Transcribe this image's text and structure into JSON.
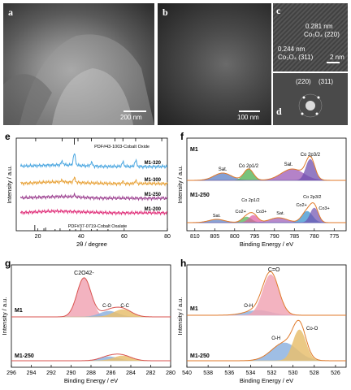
{
  "panels": {
    "a": {
      "label": "a",
      "scale": "200 nm"
    },
    "b": {
      "label": "b",
      "scale": "100 nm"
    },
    "c": {
      "label": "c",
      "d1": "0.281 nm",
      "plane1": "Co₃O₄ (220)",
      "d2": "0.244 nm",
      "plane2": "Co₃O₄ (311)",
      "scale": "2 nm"
    },
    "d": {
      "label": "d",
      "spot1": "(220)",
      "spot2": "(311)"
    }
  },
  "chart_data": [
    {
      "id": "e",
      "type": "line",
      "panel_label": "e",
      "xlabel": "2θ / degree",
      "ylabel": "Intensity / a.u.",
      "xlim": [
        10,
        80
      ],
      "x_ticks": [
        20,
        40,
        60,
        80
      ],
      "ref_top": "PDF#43-1003-Cobalt Oxide",
      "ref_bottom": "PDF#37-0719-Cobalt Oxalate",
      "series": [
        {
          "name": "M1-320",
          "color": "#4aa6e0"
        },
        {
          "name": "M1-300",
          "color": "#e8a238"
        },
        {
          "name": "M1-250",
          "color": "#9b3f8f"
        },
        {
          "name": "M1-200",
          "color": "#e0307a"
        }
      ]
    },
    {
      "id": "f",
      "type": "line",
      "panel_label": "f",
      "xlabel": "Binding Energy / eV",
      "ylabel": "Intensity / a.u.",
      "xlim": [
        812,
        772
      ],
      "x_ticks": [
        810,
        805,
        800,
        795,
        790,
        785,
        780,
        775
      ],
      "samples": [
        "M1",
        "M1-250"
      ],
      "labels_top": [
        "Sat.",
        "Co 2p1/2",
        "Sat.",
        "Co 2p3/2"
      ],
      "labels_bottom": [
        "Sat.",
        "Co 2p1/2",
        "Co2+",
        "Co3+",
        "Sat.",
        "Co 2p3/2",
        "Co2+",
        "Co3+"
      ]
    },
    {
      "id": "g",
      "type": "line",
      "panel_label": "g",
      "xlabel": "Binding Energy / eV",
      "ylabel": "Intensity / a.u.",
      "xlim": [
        296,
        280
      ],
      "x_ticks": [
        296,
        294,
        292,
        290,
        288,
        286,
        284,
        282,
        280
      ],
      "samples": [
        "M1",
        "M1-250"
      ],
      "labels": [
        "C2O42-",
        "C-O",
        "C-C"
      ]
    },
    {
      "id": "h",
      "type": "line",
      "panel_label": "h",
      "xlabel": "Binding Energy / eV",
      "ylabel": "Intensity / a.u.",
      "xlim": [
        540,
        525
      ],
      "x_ticks": [
        540,
        538,
        536,
        534,
        532,
        530,
        528,
        526
      ],
      "samples": [
        "M1",
        "M1-250"
      ],
      "labels_top": [
        "C=O",
        "O-H"
      ],
      "labels_bottom": [
        "O-H",
        "Co-O"
      ]
    }
  ]
}
